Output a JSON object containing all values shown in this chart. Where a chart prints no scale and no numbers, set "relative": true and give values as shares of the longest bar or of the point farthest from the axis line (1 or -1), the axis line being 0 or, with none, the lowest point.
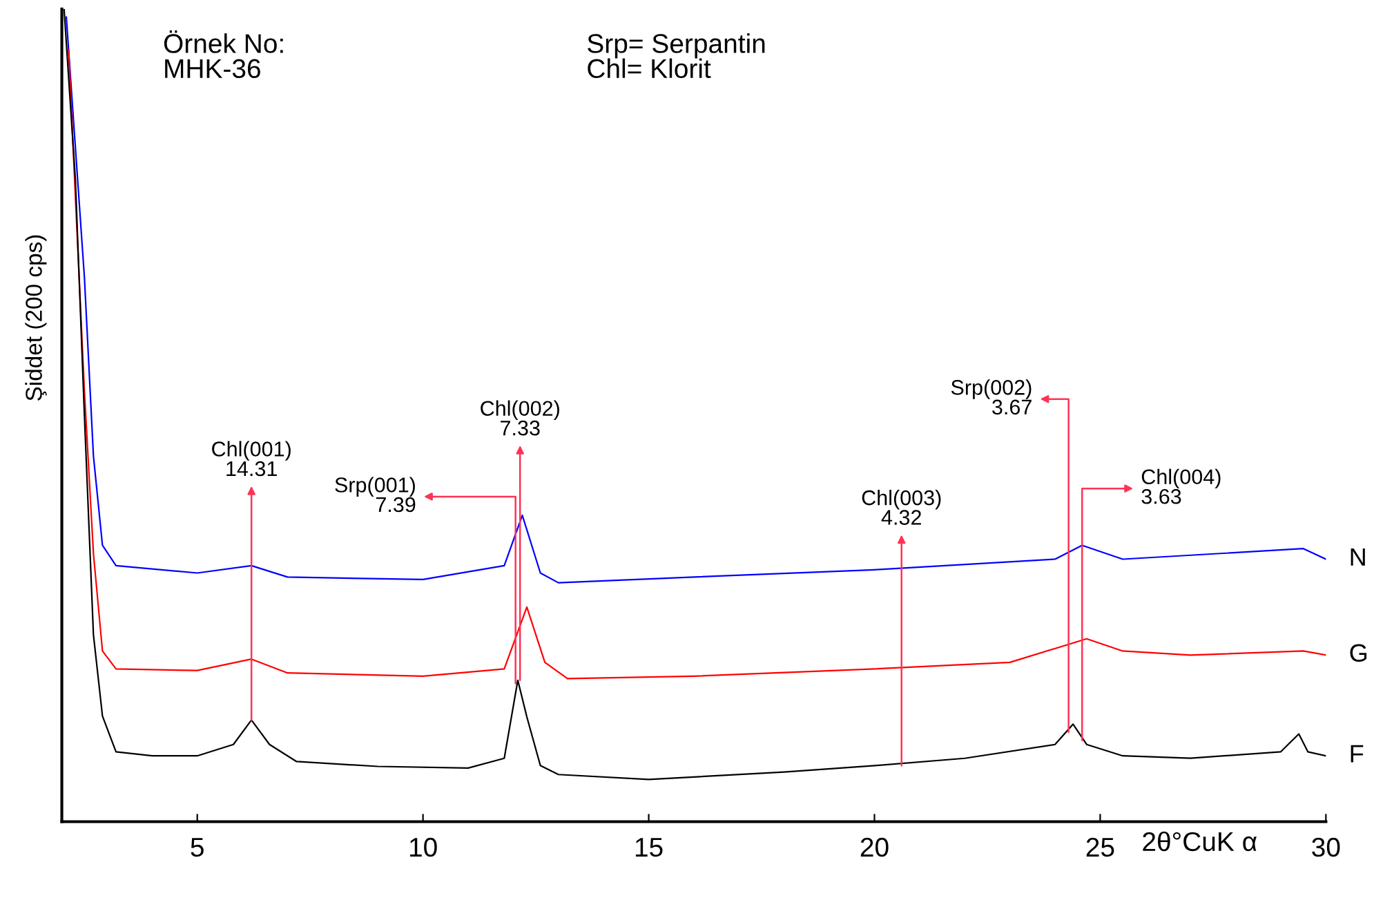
{
  "chart_data": {
    "type": "line",
    "relative": true,
    "ylabel": "Şiddet (200 cps)",
    "xlabel": "2θ°CuK α",
    "xlim": [
      2,
      30
    ],
    "xticks": [
      5,
      10,
      15,
      20,
      25,
      30
    ],
    "grid": false,
    "legend": false,
    "marker": "none",
    "line_style": "solid",
    "series": [
      {
        "name": "N",
        "color": "#0000ff",
        "x": [
          2.1,
          2.5,
          2.7,
          2.9,
          3.2,
          5,
          6.2,
          7,
          10,
          11.8,
          12.2,
          12.6,
          13,
          16,
          20,
          24,
          24.6,
          25.5,
          29.5,
          30
        ],
        "values": [
          0.99,
          0.67,
          0.45,
          0.34,
          0.315,
          0.306,
          0.315,
          0.301,
          0.298,
          0.315,
          0.377,
          0.306,
          0.294,
          0.301,
          0.31,
          0.323,
          0.34,
          0.323,
          0.336,
          0.323
        ]
      },
      {
        "name": "G",
        "color": "#ff0000",
        "x": [
          2.15,
          2.5,
          2.7,
          2.9,
          3.2,
          5,
          6.2,
          7,
          10,
          11.8,
          12.3,
          12.7,
          13.2,
          16,
          20,
          23,
          24.7,
          25.5,
          27,
          29.5,
          30
        ],
        "values": [
          0.95,
          0.53,
          0.33,
          0.21,
          0.188,
          0.186,
          0.2,
          0.183,
          0.179,
          0.188,
          0.264,
          0.196,
          0.176,
          0.179,
          0.188,
          0.196,
          0.225,
          0.21,
          0.205,
          0.21,
          0.205
        ]
      },
      {
        "name": "F",
        "color": "#000000",
        "x": [
          2.05,
          2.3,
          2.5,
          2.7,
          2.9,
          3.2,
          4,
          5,
          5.8,
          6.2,
          6.6,
          7.2,
          9,
          11,
          11.8,
          12.1,
          12.3,
          12.6,
          13,
          15,
          18,
          20,
          22,
          24,
          24.4,
          24.7,
          25.5,
          27,
          29,
          29.4,
          29.6,
          30
        ],
        "values": [
          1.0,
          0.79,
          0.5,
          0.23,
          0.13,
          0.086,
          0.081,
          0.081,
          0.095,
          0.125,
          0.095,
          0.074,
          0.068,
          0.066,
          0.078,
          0.174,
          0.129,
          0.069,
          0.058,
          0.052,
          0.061,
          0.069,
          0.078,
          0.095,
          0.12,
          0.095,
          0.081,
          0.078,
          0.086,
          0.108,
          0.086,
          0.081
        ]
      }
    ],
    "annotations": [
      "Örnek No:\nMHK-36",
      "Srp= Serpantin\nChl= Klorit",
      {
        "text": "Chl(001)\n14.31",
        "x": 6.2,
        "y": 0.125
      },
      {
        "text": "Srp(001)\n7.39",
        "x": 12.05,
        "y": 0.17
      },
      {
        "text": "Chl(002)\n7.33",
        "x": 12.15,
        "y": 0.174
      },
      {
        "text": "Chl(003)\n4.32",
        "x": 20.6,
        "y": 0.069
      },
      {
        "text": "Srp(002)\n3.67",
        "x": 24.3,
        "y": 0.11
      },
      {
        "text": "Chl(004)\n3.63",
        "x": 24.6,
        "y": 0.1
      }
    ]
  }
}
